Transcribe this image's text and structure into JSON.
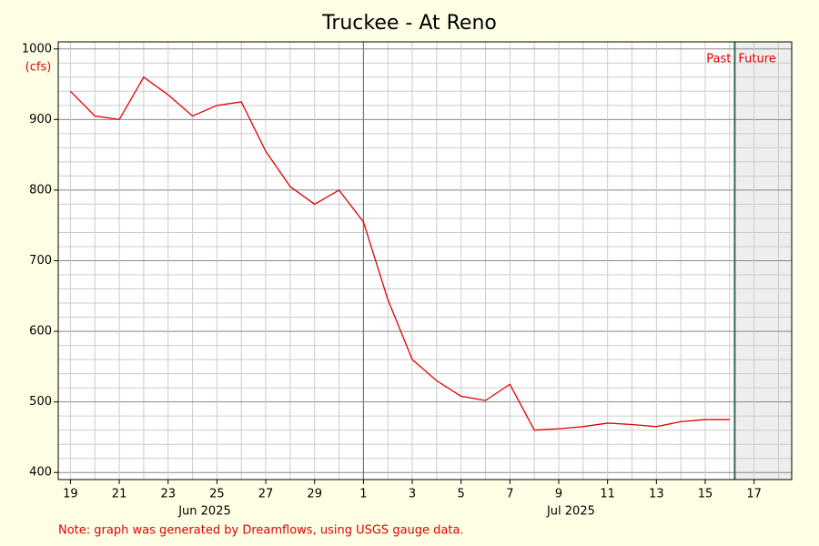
{
  "chart_data": {
    "type": "line",
    "title": "Truckee - At Reno",
    "y_label": "(cfs)",
    "x": [
      "2025-06-19",
      "2025-06-20",
      "2025-06-21",
      "2025-06-22",
      "2025-06-23",
      "2025-06-24",
      "2025-06-25",
      "2025-06-26",
      "2025-06-27",
      "2025-06-28",
      "2025-06-29",
      "2025-06-30",
      "2025-07-01",
      "2025-07-02",
      "2025-07-03",
      "2025-07-04",
      "2025-07-05",
      "2025-07-06",
      "2025-07-07",
      "2025-07-08",
      "2025-07-09",
      "2025-07-10",
      "2025-07-11",
      "2025-07-12",
      "2025-07-13",
      "2025-07-14",
      "2025-07-15",
      "2025-07-16"
    ],
    "series": [
      {
        "name": "Truckee - At Reno",
        "color": "#e00000",
        "values": [
          940,
          905,
          900,
          960,
          935,
          905,
          920,
          925,
          855,
          805,
          780,
          800,
          755,
          645,
          560,
          530,
          508,
          502,
          525,
          460,
          462,
          465,
          470,
          468,
          465,
          472,
          475,
          475
        ]
      }
    ],
    "xlim": [
      "2025-06-18T12:00",
      "2025-07-18T13:00"
    ],
    "xticks": [
      {
        "value": "2025-06-19",
        "label": "19"
      },
      {
        "value": "2025-06-21",
        "label": "21"
      },
      {
        "value": "2025-06-23",
        "label": "23"
      },
      {
        "value": "2025-06-25",
        "label": "25"
      },
      {
        "value": "2025-06-27",
        "label": "27"
      },
      {
        "value": "2025-06-29",
        "label": "29"
      },
      {
        "value": "2025-07-01",
        "label": "1"
      },
      {
        "value": "2025-07-03",
        "label": "3"
      },
      {
        "value": "2025-07-05",
        "label": "5"
      },
      {
        "value": "2025-07-07",
        "label": "7"
      },
      {
        "value": "2025-07-09",
        "label": "9"
      },
      {
        "value": "2025-07-11",
        "label": "11"
      },
      {
        "value": "2025-07-13",
        "label": "13"
      },
      {
        "value": "2025-07-15",
        "label": "15"
      },
      {
        "value": "2025-07-17",
        "label": "17"
      }
    ],
    "xminorticks": [
      "2025-06-20",
      "2025-06-22",
      "2025-06-24",
      "2025-06-26",
      "2025-06-28",
      "2025-06-30",
      "2025-07-02",
      "2025-07-04",
      "2025-07-06",
      "2025-07-08",
      "2025-07-10",
      "2025-07-12",
      "2025-07-14",
      "2025-07-16",
      "2025-07-18"
    ],
    "month_labels": [
      {
        "value": "2025-06-24T12:00",
        "label": "Jun 2025"
      },
      {
        "value": "2025-07-09T12:00",
        "label": "Jul 2025"
      }
    ],
    "month_divider": "2025-07-01",
    "ylim": [
      390,
      1010
    ],
    "yticks": [
      400,
      500,
      600,
      700,
      800,
      900,
      1000
    ],
    "yminorticks": [
      420,
      440,
      460,
      480,
      520,
      540,
      560,
      580,
      620,
      640,
      660,
      680,
      720,
      740,
      760,
      780,
      820,
      840,
      860,
      880,
      920,
      940,
      960,
      980
    ],
    "grid": true,
    "now": "2025-07-16T05:00",
    "past_label": "Past",
    "future_label": "Future",
    "note": "Note: graph was generated by Dreamflows, using USGS gauge data."
  }
}
